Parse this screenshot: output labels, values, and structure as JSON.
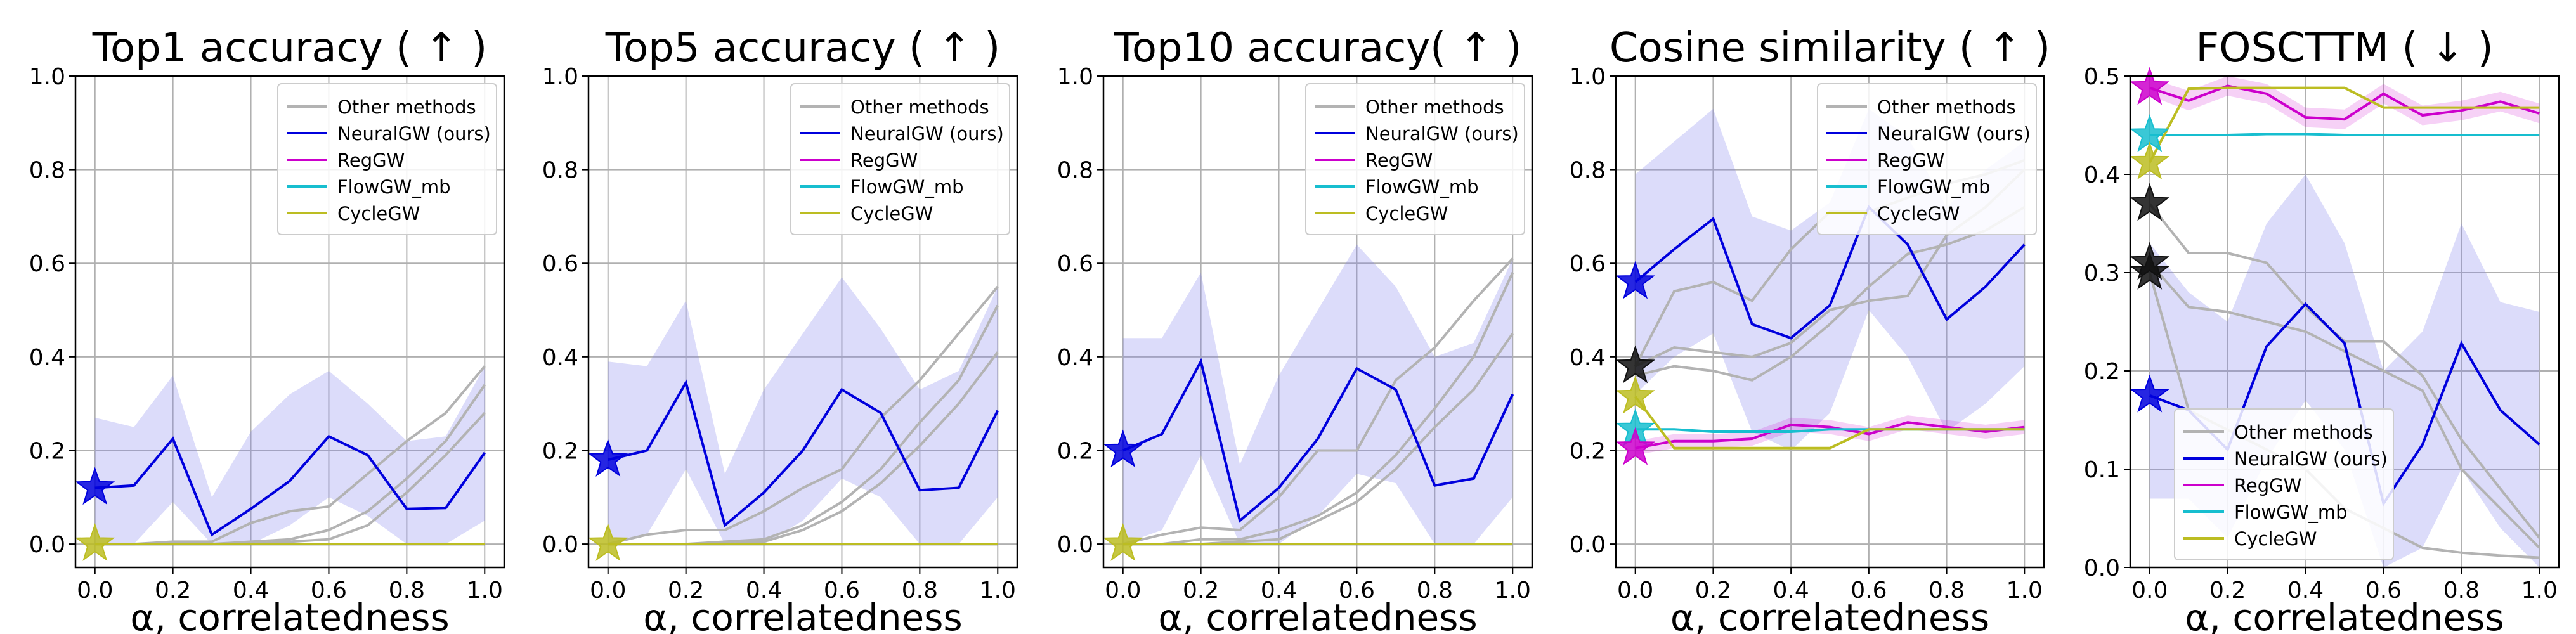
{
  "figure": {
    "xlabel": "α, correlatedness",
    "x_ticks": [
      "0.0",
      "0.2",
      "0.4",
      "0.6",
      "0.8",
      "1.0"
    ],
    "legend_entries": [
      {
        "name": "Other methods",
        "color": "#b3b3b3"
      },
      {
        "name": "NeuralGW (ours)",
        "color": "#0000dd"
      },
      {
        "name": "RegGW",
        "color": "#cc00cc"
      },
      {
        "name": "FlowGW_mb",
        "color": "#17becf"
      },
      {
        "name": "CycleGW",
        "color": "#bcbd22"
      }
    ],
    "colors": {
      "other": "#b3b3b3",
      "neural": "#0000dd",
      "neural_band": "#8080ee",
      "reg": "#cc00cc",
      "flow": "#17becf",
      "cycle": "#bcbd22",
      "star_black": "#111111",
      "grid": "#b0b0b0"
    }
  },
  "chart_data": [
    {
      "type": "line",
      "title": "Top1 accuracy ( ↑ )",
      "xlabel": "α, correlatedness",
      "ylim": [
        -0.05,
        1.0
      ],
      "y_ticks": [
        "0.0",
        "0.2",
        "0.4",
        "0.6",
        "0.8",
        "1.0"
      ],
      "grid": true,
      "legend_position": "top-right",
      "x": [
        0.0,
        0.1,
        0.2,
        0.3,
        0.4,
        0.5,
        0.6,
        0.7,
        0.8,
        0.9,
        1.0
      ],
      "series": [
        {
          "name": "NeuralGW (ours)",
          "values": [
            0.12,
            0.125,
            0.225,
            0.02,
            0.075,
            0.135,
            0.23,
            0.19,
            0.075,
            0.077,
            0.195
          ],
          "band_lower": [
            0.0,
            0.0,
            0.09,
            0.0,
            0.0,
            0.04,
            0.1,
            0.06,
            0.0,
            0.0,
            0.05
          ],
          "band_upper": [
            0.27,
            0.25,
            0.36,
            0.1,
            0.24,
            0.32,
            0.37,
            0.3,
            0.22,
            0.23,
            0.38
          ]
        },
        {
          "name": "RegGW",
          "values": [
            0,
            0,
            0,
            0,
            0,
            0,
            0,
            0,
            0,
            0,
            0
          ]
        },
        {
          "name": "FlowGW_mb",
          "values": [
            0,
            0,
            0,
            0,
            0,
            0,
            0,
            0,
            0,
            0,
            0
          ]
        },
        {
          "name": "CycleGW",
          "values": [
            0,
            0,
            0,
            0,
            0,
            0,
            0,
            0,
            0,
            0,
            0
          ]
        }
      ],
      "other_methods": [
        [
          0.0,
          0.0,
          0.005,
          0.005,
          0.045,
          0.07,
          0.08,
          0.15,
          0.22,
          0.28,
          0.38
        ],
        [
          0.0,
          0.0,
          0.0,
          0.0,
          0.005,
          0.01,
          0.03,
          0.07,
          0.14,
          0.22,
          0.34
        ],
        [
          0.0,
          0.0,
          0.0,
          0.0,
          0.0,
          0.005,
          0.01,
          0.04,
          0.11,
          0.19,
          0.28
        ]
      ],
      "star_markers": [
        {
          "method": "NeuralGW (ours)",
          "x": 0.0,
          "y": 0.12
        },
        {
          "method": "CycleGW",
          "x": 0.0,
          "y": 0.0
        }
      ]
    },
    {
      "type": "line",
      "title": "Top5 accuracy ( ↑ )",
      "xlabel": "α, correlatedness",
      "ylim": [
        -0.05,
        1.0
      ],
      "y_ticks": [
        "0.0",
        "0.2",
        "0.4",
        "0.6",
        "0.8",
        "1.0"
      ],
      "grid": true,
      "legend_position": "top-right",
      "x": [
        0.0,
        0.1,
        0.2,
        0.3,
        0.4,
        0.5,
        0.6,
        0.7,
        0.8,
        0.9,
        1.0
      ],
      "series": [
        {
          "name": "NeuralGW (ours)",
          "values": [
            0.18,
            0.2,
            0.345,
            0.04,
            0.11,
            0.2,
            0.33,
            0.28,
            0.115,
            0.12,
            0.285
          ],
          "band_lower": [
            0.0,
            0.02,
            0.16,
            0.0,
            0.0,
            0.05,
            0.14,
            0.1,
            0.0,
            0.0,
            0.1
          ],
          "band_upper": [
            0.39,
            0.38,
            0.52,
            0.15,
            0.33,
            0.45,
            0.57,
            0.46,
            0.33,
            0.37,
            0.55
          ]
        },
        {
          "name": "RegGW",
          "values": [
            0,
            0,
            0,
            0,
            0,
            0,
            0,
            0,
            0,
            0,
            0
          ]
        },
        {
          "name": "FlowGW_mb",
          "values": [
            0,
            0,
            0,
            0,
            0,
            0,
            0,
            0,
            0,
            0,
            0
          ]
        },
        {
          "name": "CycleGW",
          "values": [
            0,
            0,
            0,
            0,
            0,
            0,
            0,
            0,
            0,
            0,
            0
          ]
        }
      ],
      "other_methods": [
        [
          0.0,
          0.02,
          0.03,
          0.03,
          0.07,
          0.12,
          0.16,
          0.27,
          0.35,
          0.45,
          0.55
        ],
        [
          0.0,
          0.0,
          0.0,
          0.005,
          0.01,
          0.04,
          0.09,
          0.16,
          0.26,
          0.35,
          0.51
        ],
        [
          0.0,
          0.0,
          0.0,
          0.0,
          0.005,
          0.03,
          0.07,
          0.13,
          0.21,
          0.3,
          0.41
        ]
      ],
      "star_markers": [
        {
          "method": "NeuralGW (ours)",
          "x": 0.0,
          "y": 0.18
        },
        {
          "method": "CycleGW",
          "x": 0.0,
          "y": 0.0
        }
      ]
    },
    {
      "type": "line",
      "title": "Top10 accuracy( ↑ )",
      "xlabel": "α, correlatedness",
      "ylim": [
        -0.05,
        1.0
      ],
      "y_ticks": [
        "0.0",
        "0.2",
        "0.4",
        "0.6",
        "0.8",
        "1.0"
      ],
      "grid": true,
      "legend_position": "top-right",
      "x": [
        0.0,
        0.1,
        0.2,
        0.3,
        0.4,
        0.5,
        0.6,
        0.7,
        0.8,
        0.9,
        1.0
      ],
      "series": [
        {
          "name": "NeuralGW (ours)",
          "values": [
            0.2,
            0.235,
            0.39,
            0.05,
            0.12,
            0.225,
            0.375,
            0.33,
            0.125,
            0.14,
            0.32
          ],
          "band_lower": [
            0.0,
            0.03,
            0.19,
            0.0,
            0.0,
            0.06,
            0.15,
            0.13,
            0.0,
            0.0,
            0.1
          ],
          "band_upper": [
            0.44,
            0.44,
            0.58,
            0.17,
            0.36,
            0.5,
            0.64,
            0.55,
            0.4,
            0.43,
            0.61
          ]
        },
        {
          "name": "RegGW",
          "values": [
            0,
            0,
            0,
            0,
            0,
            0,
            0,
            0,
            0,
            0,
            0
          ]
        },
        {
          "name": "FlowGW_mb",
          "values": [
            0,
            0,
            0,
            0,
            0,
            0,
            0,
            0,
            0,
            0,
            0
          ]
        },
        {
          "name": "CycleGW",
          "values": [
            0,
            0,
            0,
            0,
            0,
            0,
            0,
            0,
            0,
            0,
            0
          ]
        }
      ],
      "other_methods": [
        [
          0.0,
          0.02,
          0.035,
          0.03,
          0.1,
          0.2,
          0.2,
          0.35,
          0.42,
          0.52,
          0.61
        ],
        [
          0.0,
          0.0,
          0.01,
          0.01,
          0.03,
          0.06,
          0.11,
          0.19,
          0.29,
          0.4,
          0.58
        ],
        [
          0.0,
          0.0,
          0.0,
          0.005,
          0.01,
          0.05,
          0.09,
          0.16,
          0.25,
          0.33,
          0.45
        ]
      ],
      "star_markers": [
        {
          "method": "NeuralGW (ours)",
          "x": 0.0,
          "y": 0.2
        },
        {
          "method": "CycleGW",
          "x": 0.0,
          "y": 0.0
        }
      ]
    },
    {
      "type": "line",
      "title": "Cosine similarity ( ↑ )",
      "xlabel": "α, correlatedness",
      "ylim": [
        -0.05,
        1.0
      ],
      "y_ticks": [
        "0.0",
        "0.2",
        "0.4",
        "0.6",
        "0.8",
        "1.0"
      ],
      "grid": true,
      "legend_position": "top-right",
      "x": [
        0.0,
        0.1,
        0.2,
        0.3,
        0.4,
        0.5,
        0.6,
        0.7,
        0.8,
        0.9,
        1.0
      ],
      "series": [
        {
          "name": "NeuralGW (ours)",
          "values": [
            0.56,
            0.63,
            0.695,
            0.47,
            0.44,
            0.51,
            0.72,
            0.64,
            0.48,
            0.55,
            0.64
          ],
          "band_lower": [
            0.32,
            0.4,
            0.45,
            0.24,
            0.2,
            0.28,
            0.5,
            0.4,
            0.24,
            0.3,
            0.38
          ],
          "band_upper": [
            0.79,
            0.86,
            0.93,
            0.7,
            0.67,
            0.73,
            0.93,
            0.87,
            0.72,
            0.8,
            0.86
          ]
        },
        {
          "name": "RegGW",
          "values": [
            0.205,
            0.22,
            0.22,
            0.225,
            0.255,
            0.25,
            0.235,
            0.26,
            0.25,
            0.24,
            0.25
          ],
          "band_lower": [
            0.19,
            0.205,
            0.205,
            0.21,
            0.24,
            0.235,
            0.22,
            0.245,
            0.235,
            0.225,
            0.235
          ],
          "band_upper": [
            0.22,
            0.235,
            0.235,
            0.24,
            0.27,
            0.265,
            0.25,
            0.275,
            0.265,
            0.255,
            0.265
          ]
        },
        {
          "name": "FlowGW_mb",
          "values": [
            0.245,
            0.245,
            0.24,
            0.24,
            0.24,
            0.245,
            0.245,
            0.245,
            0.245,
            0.245,
            0.245
          ]
        },
        {
          "name": "CycleGW",
          "values": [
            0.315,
            0.205,
            0.205,
            0.205,
            0.205,
            0.205,
            0.245,
            0.245,
            0.245,
            0.245,
            0.245
          ]
        }
      ],
      "other_methods": [
        [
          0.38,
          0.54,
          0.56,
          0.52,
          0.63,
          0.71,
          0.71,
          0.74,
          0.77,
          0.79,
          0.82
        ],
        [
          0.38,
          0.42,
          0.41,
          0.4,
          0.43,
          0.5,
          0.52,
          0.53,
          0.66,
          0.72,
          0.8
        ],
        [
          0.36,
          0.38,
          0.37,
          0.35,
          0.4,
          0.47,
          0.55,
          0.62,
          0.64,
          0.67,
          0.72
        ]
      ],
      "star_markers": [
        {
          "method": "NeuralGW (ours)",
          "x": 0.0,
          "y": 0.56
        },
        {
          "method": "Other methods",
          "x": 0.0,
          "y": 0.38
        },
        {
          "method": "CycleGW",
          "x": 0.0,
          "y": 0.315
        },
        {
          "method": "FlowGW_mb",
          "x": 0.0,
          "y": 0.245
        },
        {
          "method": "RegGW",
          "x": 0.0,
          "y": 0.205
        }
      ]
    },
    {
      "type": "line",
      "title": "FOSCTTM ( ↓ )",
      "xlabel": "α, correlatedness",
      "ylim": [
        0.0,
        0.5
      ],
      "y_ticks": [
        "0.0",
        "0.1",
        "0.2",
        "0.3",
        "0.4",
        "0.5"
      ],
      "grid": true,
      "legend_position": "bottom-left",
      "x": [
        0.0,
        0.1,
        0.2,
        0.3,
        0.4,
        0.5,
        0.6,
        0.7,
        0.8,
        0.9,
        1.0
      ],
      "series": [
        {
          "name": "NeuralGW (ours)",
          "values": [
            0.175,
            0.16,
            0.12,
            0.225,
            0.268,
            0.228,
            0.065,
            0.125,
            0.228,
            0.16,
            0.125
          ],
          "band_lower": [
            0.07,
            0.07,
            0.03,
            0.11,
            0.17,
            0.12,
            0.0,
            0.02,
            0.1,
            0.04,
            0.0
          ],
          "band_upper": [
            0.33,
            0.28,
            0.25,
            0.35,
            0.4,
            0.33,
            0.2,
            0.24,
            0.35,
            0.27,
            0.26
          ]
        },
        {
          "name": "RegGW",
          "values": [
            0.488,
            0.475,
            0.49,
            0.482,
            0.458,
            0.456,
            0.482,
            0.46,
            0.465,
            0.474,
            0.462
          ],
          "band_lower": [
            0.48,
            0.465,
            0.48,
            0.472,
            0.448,
            0.446,
            0.472,
            0.45,
            0.455,
            0.464,
            0.452
          ],
          "band_upper": [
            0.498,
            0.485,
            0.5,
            0.492,
            0.468,
            0.466,
            0.492,
            0.47,
            0.475,
            0.484,
            0.472
          ]
        },
        {
          "name": "FlowGW_mb",
          "values": [
            0.44,
            0.44,
            0.44,
            0.441,
            0.441,
            0.44,
            0.44,
            0.44,
            0.44,
            0.44,
            0.44
          ]
        },
        {
          "name": "CycleGW",
          "values": [
            0.412,
            0.487,
            0.488,
            0.488,
            0.488,
            0.488,
            0.468,
            0.468,
            0.468,
            0.468,
            0.468
          ]
        }
      ],
      "other_methods": [
        [
          0.37,
          0.32,
          0.32,
          0.31,
          0.265,
          0.23,
          0.23,
          0.195,
          0.13,
          0.08,
          0.03
        ],
        [
          0.31,
          0.265,
          0.26,
          0.25,
          0.24,
          0.22,
          0.2,
          0.18,
          0.1,
          0.06,
          0.02
        ],
        [
          0.3,
          0.16,
          0.14,
          0.12,
          0.1,
          0.06,
          0.04,
          0.02,
          0.015,
          0.012,
          0.01
        ]
      ],
      "star_markers": [
        {
          "method": "RegGW",
          "x": 0.0,
          "y": 0.488
        },
        {
          "method": "FlowGW_mb",
          "x": 0.0,
          "y": 0.44
        },
        {
          "method": "CycleGW",
          "x": 0.0,
          "y": 0.412
        },
        {
          "method": "Other methods",
          "x": 0.0,
          "y": 0.37
        },
        {
          "method": "Other methods",
          "x": 0.0,
          "y": 0.31
        },
        {
          "method": "Other methods",
          "x": 0.0,
          "y": 0.3
        },
        {
          "method": "NeuralGW (ours)",
          "x": 0.0,
          "y": 0.175
        }
      ]
    }
  ]
}
